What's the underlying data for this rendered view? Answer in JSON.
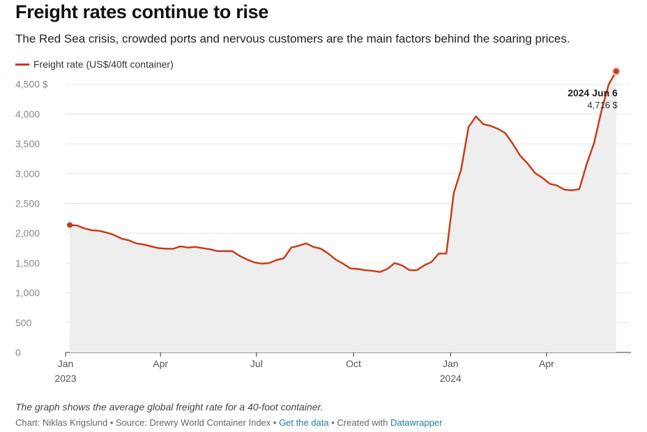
{
  "header": {
    "title": "Freight rates continue to rise",
    "subtitle": "The Red Sea crisis, crowded ports and nervous customers are the main factors behind the soaring prices."
  },
  "legend": {
    "label": "Freight rate (US$/40ft container)",
    "color": "#c83c1a"
  },
  "annotation": {
    "date": "2024 Jun 6",
    "value": "4,716 $"
  },
  "footer": {
    "note": "The graph shows the average global freight rate for a 40-foot container.",
    "credit_prefix": "Chart: Niklas Krigslund • Source: Drewry World Container Index • ",
    "get_data": "Get the data",
    "created_with": " • Created with ",
    "datawrapper": "Datawrapper"
  },
  "chart_data": {
    "type": "area",
    "series": [
      {
        "name": "Freight rate (US$/40ft container)",
        "x": [
          "2023-01-05",
          "2023-01-12",
          "2023-01-19",
          "2023-01-26",
          "2023-02-02",
          "2023-02-09",
          "2023-02-16",
          "2023-02-23",
          "2023-03-02",
          "2023-03-09",
          "2023-03-16",
          "2023-03-23",
          "2023-03-30",
          "2023-04-06",
          "2023-04-13",
          "2023-04-20",
          "2023-04-27",
          "2023-05-04",
          "2023-05-11",
          "2023-05-18",
          "2023-05-25",
          "2023-06-01",
          "2023-06-08",
          "2023-06-15",
          "2023-06-22",
          "2023-06-29",
          "2023-07-06",
          "2023-07-13",
          "2023-07-20",
          "2023-07-27",
          "2023-08-03",
          "2023-08-10",
          "2023-08-17",
          "2023-08-24",
          "2023-08-31",
          "2023-09-07",
          "2023-09-14",
          "2023-09-21",
          "2023-09-28",
          "2023-10-05",
          "2023-10-12",
          "2023-10-19",
          "2023-10-26",
          "2023-11-02",
          "2023-11-09",
          "2023-11-16",
          "2023-11-23",
          "2023-11-30",
          "2023-12-07",
          "2023-12-14",
          "2023-12-21",
          "2023-12-28",
          "2024-01-04",
          "2024-01-11",
          "2024-01-18",
          "2024-01-25",
          "2024-02-01",
          "2024-02-08",
          "2024-02-15",
          "2024-02-22",
          "2024-02-29",
          "2024-03-07",
          "2024-03-14",
          "2024-03-21",
          "2024-03-28",
          "2024-04-04",
          "2024-04-11",
          "2024-04-18",
          "2024-04-25",
          "2024-05-02",
          "2024-05-09",
          "2024-05-16",
          "2024-05-23",
          "2024-05-30",
          "2024-06-06"
        ],
        "values": [
          2138,
          2130,
          2080,
          2050,
          2040,
          2010,
          1970,
          1910,
          1880,
          1830,
          1810,
          1780,
          1750,
          1740,
          1740,
          1780,
          1760,
          1770,
          1750,
          1730,
          1700,
          1700,
          1700,
          1620,
          1560,
          1510,
          1490,
          1500,
          1550,
          1580,
          1760,
          1790,
          1830,
          1770,
          1740,
          1660,
          1560,
          1490,
          1410,
          1400,
          1380,
          1370,
          1350,
          1400,
          1500,
          1460,
          1380,
          1380,
          1460,
          1520,
          1660,
          1660,
          2670,
          3070,
          3780,
          3960,
          3830,
          3800,
          3750,
          3680,
          3500,
          3300,
          3170,
          3010,
          2930,
          2830,
          2800,
          2730,
          2720,
          2740,
          3160,
          3510,
          4050,
          4500,
          4716
        ]
      }
    ],
    "x_tick_labels": [
      {
        "date": "2023-01-01",
        "label": "Jan",
        "sublabel": "2023"
      },
      {
        "date": "2023-04-01",
        "label": "Apr",
        "sublabel": ""
      },
      {
        "date": "2023-07-01",
        "label": "Jul",
        "sublabel": ""
      },
      {
        "date": "2023-10-01",
        "label": "Oct",
        "sublabel": ""
      },
      {
        "date": "2024-01-01",
        "label": "Jan",
        "sublabel": "2024"
      },
      {
        "date": "2024-04-01",
        "label": "Apr",
        "sublabel": ""
      }
    ],
    "y_ticks": [
      {
        "value": 0,
        "label": "0"
      },
      {
        "value": 500,
        "label": "500"
      },
      {
        "value": 1000,
        "label": "1,000"
      },
      {
        "value": 1500,
        "label": "1,500"
      },
      {
        "value": 2000,
        "label": "2,000"
      },
      {
        "value": 2500,
        "label": "2,500"
      },
      {
        "value": 3000,
        "label": "3,000"
      },
      {
        "value": 3500,
        "label": "3,500"
      },
      {
        "value": 4000,
        "label": "4,000"
      },
      {
        "value": 4500,
        "label": "4,500 $"
      }
    ],
    "ylim": [
      0,
      4800
    ],
    "xlim": [
      "2023-01-01",
      "2024-06-20"
    ],
    "grid": true,
    "legend_position": "top-left",
    "area_color": "#eeeeee",
    "line_color": "#c83c1a"
  }
}
